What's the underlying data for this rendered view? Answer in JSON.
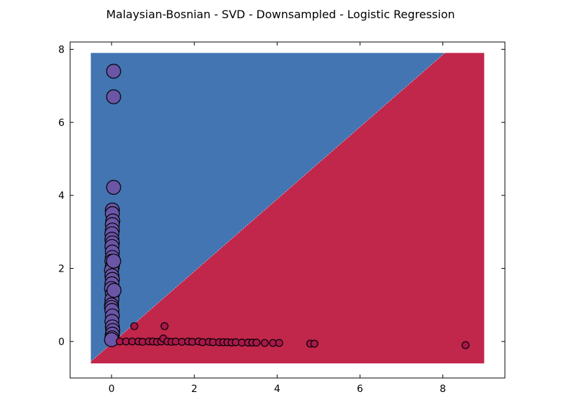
{
  "chart_data": {
    "type": "scatter",
    "title": "Malaysian-Bosnian - SVD - Downsampled - Logistic Regression",
    "xlabel": "",
    "ylabel": "",
    "xlim": [
      -1,
      9.5
    ],
    "ylim": [
      -1,
      8.2
    ],
    "xticks": [
      0,
      2,
      4,
      6,
      8
    ],
    "yticks": [
      0,
      2,
      4,
      6,
      8
    ],
    "grid": false,
    "decision_regions": {
      "extent_x": [
        -0.5,
        9.0
      ],
      "extent_y": [
        -0.6,
        7.9
      ],
      "boundary": [
        [
          -0.5,
          -0.55
        ],
        [
          8.05,
          7.9
        ]
      ],
      "upper_region_color": "#4275b2",
      "lower_region_color": "#c1264b"
    },
    "series": [
      {
        "color": "#6a55a6",
        "marker_size": "large",
        "points": [
          [
            0.05,
            7.4
          ],
          [
            0.05,
            6.7
          ],
          [
            0.05,
            4.22
          ],
          [
            0.02,
            3.6
          ],
          [
            0.02,
            3.5
          ],
          [
            0.03,
            3.3
          ],
          [
            0.02,
            3.2
          ],
          [
            0.02,
            3.05
          ],
          [
            0.01,
            2.95
          ],
          [
            0.01,
            2.8
          ],
          [
            0.02,
            2.7
          ],
          [
            0.01,
            2.6
          ],
          [
            0.02,
            2.45
          ],
          [
            0.02,
            2.3
          ],
          [
            0.01,
            2.2
          ],
          [
            0.02,
            2.05
          ],
          [
            0.0,
            1.95
          ],
          [
            0.01,
            1.8
          ],
          [
            0.02,
            1.7
          ],
          [
            0.01,
            1.58
          ],
          [
            0.0,
            1.45
          ],
          [
            0.02,
            1.3
          ],
          [
            0.01,
            1.15
          ],
          [
            0.0,
            1.0
          ],
          [
            0.0,
            0.93
          ],
          [
            0.01,
            0.85
          ],
          [
            0.02,
            0.7
          ],
          [
            0.01,
            0.55
          ],
          [
            0.02,
            0.4
          ],
          [
            0.03,
            0.3
          ],
          [
            0.02,
            0.2
          ],
          [
            0.01,
            0.1
          ],
          [
            0.0,
            0.05
          ],
          [
            0.05,
            2.2
          ],
          [
            0.06,
            1.4
          ]
        ]
      },
      {
        "color": "#a8184a",
        "marker_size": "small",
        "points": [
          [
            0.55,
            0.42
          ],
          [
            1.28,
            0.42
          ],
          [
            0.2,
            0.0
          ],
          [
            0.35,
            0.0
          ],
          [
            0.5,
            0.0
          ],
          [
            0.65,
            0.0
          ],
          [
            0.75,
            -0.01
          ],
          [
            0.9,
            0.0
          ],
          [
            1.0,
            0.0
          ],
          [
            1.1,
            -0.01
          ],
          [
            1.2,
            0.0
          ],
          [
            1.25,
            0.08
          ],
          [
            1.35,
            0.0
          ],
          [
            1.45,
            -0.01
          ],
          [
            1.55,
            0.0
          ],
          [
            1.7,
            -0.01
          ],
          [
            1.85,
            0.0
          ],
          [
            1.95,
            -0.01
          ],
          [
            2.1,
            0.0
          ],
          [
            2.2,
            -0.02
          ],
          [
            2.35,
            -0.01
          ],
          [
            2.45,
            -0.02
          ],
          [
            2.6,
            -0.02
          ],
          [
            2.7,
            -0.02
          ],
          [
            2.8,
            -0.02
          ],
          [
            2.9,
            -0.03
          ],
          [
            3.0,
            -0.02
          ],
          [
            3.15,
            -0.03
          ],
          [
            3.3,
            -0.03
          ],
          [
            3.4,
            -0.03
          ],
          [
            3.5,
            -0.03
          ],
          [
            3.7,
            -0.04
          ],
          [
            3.9,
            -0.04
          ],
          [
            4.05,
            -0.04
          ],
          [
            4.8,
            -0.06
          ],
          [
            4.9,
            -0.06
          ],
          [
            8.55,
            -0.1
          ]
        ]
      }
    ]
  }
}
